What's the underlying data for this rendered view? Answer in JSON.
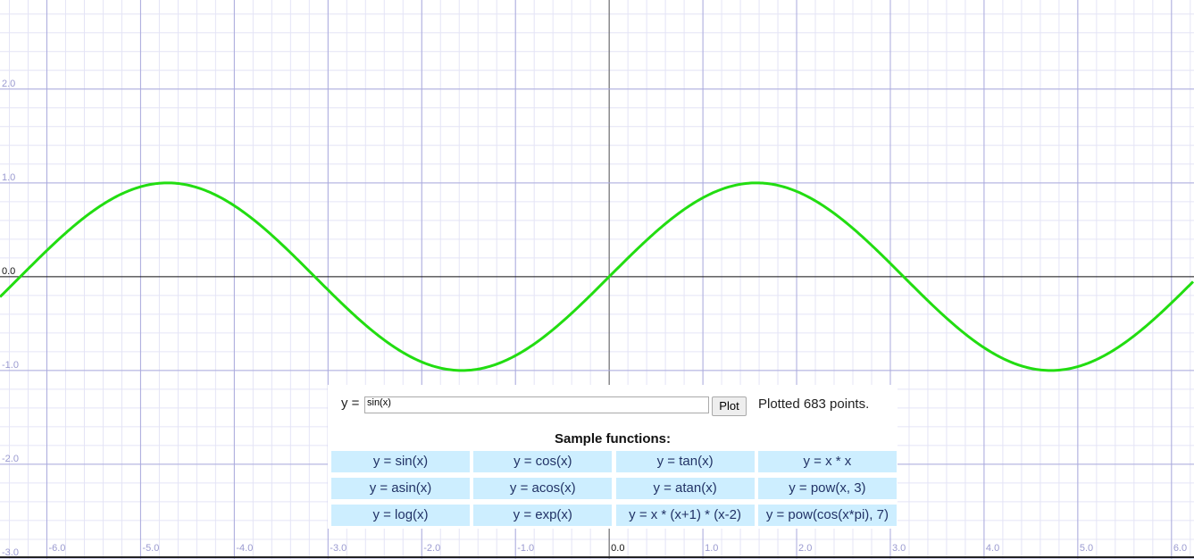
{
  "plot": {
    "xlim": [
      -6.5,
      6.24
    ],
    "ylim": [
      -3.01,
      2.95
    ],
    "minor_grid_step": 0.2,
    "xticks": [
      {
        "value": -6,
        "label": "-6.0"
      },
      {
        "value": -5,
        "label": "-5.0"
      },
      {
        "value": -4,
        "label": "-4.0"
      },
      {
        "value": -3,
        "label": "-3.0"
      },
      {
        "value": -2,
        "label": "-2.0"
      },
      {
        "value": -1,
        "label": "-1.0"
      },
      {
        "value": 0,
        "label": "0.0"
      },
      {
        "value": 1,
        "label": "1.0"
      },
      {
        "value": 2,
        "label": "2.0"
      },
      {
        "value": 3,
        "label": "3.0"
      },
      {
        "value": 4,
        "label": "4.0"
      },
      {
        "value": 5,
        "label": "5.0"
      },
      {
        "value": 6,
        "label": "6.0"
      }
    ],
    "yticks": [
      {
        "value": 2,
        "label": "2.0"
      },
      {
        "value": 1,
        "label": "1.0"
      },
      {
        "value": 0,
        "label": "0.0"
      },
      {
        "value": -1,
        "label": "-1.0"
      },
      {
        "value": -2,
        "label": "-2.0"
      },
      {
        "value": -3,
        "label": "-3.0"
      }
    ],
    "curve_color": "#22dd11"
  },
  "controls": {
    "prompt": "y =",
    "expression": "sin(x)",
    "button": "Plot",
    "status": "Plotted 683 points.",
    "samples_title": "Sample functions:",
    "samples": [
      [
        "y = sin(x)",
        "y = cos(x)",
        "y = tan(x)",
        "y = x * x"
      ],
      [
        "y = asin(x)",
        "y = acos(x)",
        "y = atan(x)",
        "y = pow(x, 3)"
      ],
      [
        "y = log(x)",
        "y = exp(x)",
        "y = x * (x+1) * (x-2)",
        "y = pow(cos(x*pi), 7)"
      ]
    ]
  }
}
